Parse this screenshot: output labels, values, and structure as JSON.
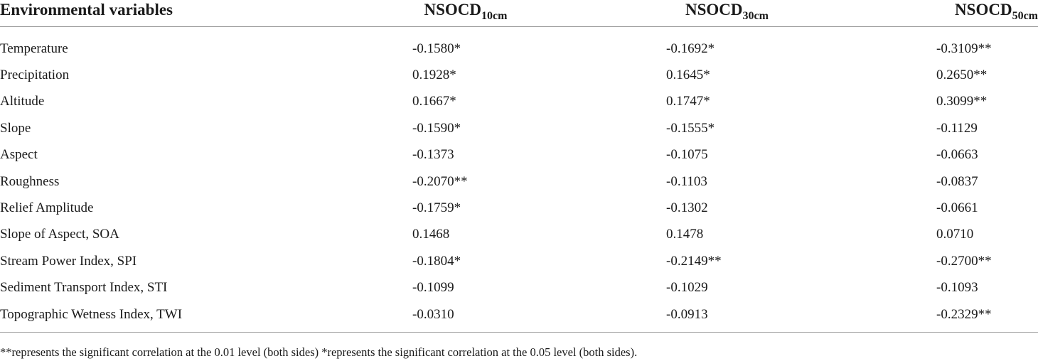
{
  "table": {
    "header": {
      "first": "Environmental variables",
      "columns": [
        {
          "base": "NSOCD",
          "sub": "10cm"
        },
        {
          "base": "NSOCD",
          "sub": "30cm"
        },
        {
          "base": "NSOCD",
          "sub": "50cm"
        }
      ]
    },
    "rows": [
      {
        "name": "Temperature",
        "values": [
          "-0.1580*",
          "-0.1692*",
          "-0.3109**"
        ]
      },
      {
        "name": "Precipitation",
        "values": [
          "0.1928*",
          "0.1645*",
          "0.2650**"
        ]
      },
      {
        "name": "Altitude",
        "values": [
          "0.1667*",
          "0.1747*",
          "0.3099**"
        ]
      },
      {
        "name": "Slope",
        "values": [
          "-0.1590*",
          "-0.1555*",
          "-0.1129"
        ]
      },
      {
        "name": "Aspect",
        "values": [
          "-0.1373",
          "-0.1075",
          "-0.0663"
        ]
      },
      {
        "name": "Roughness",
        "values": [
          "-0.2070**",
          "-0.1103",
          "-0.0837"
        ]
      },
      {
        "name": "Relief Amplitude",
        "values": [
          "-0.1759*",
          "-0.1302",
          "-0.0661"
        ]
      },
      {
        "name": "Slope of Aspect, SOA",
        "values": [
          "0.1468",
          "0.1478",
          "0.0710"
        ]
      },
      {
        "name": "Stream Power Index, SPI",
        "values": [
          "-0.1804*",
          "-0.2149**",
          "-0.2700**"
        ]
      },
      {
        "name": "Sediment Transport Index, STI",
        "values": [
          "-0.1099",
          "-0.1029",
          "-0.1093"
        ]
      },
      {
        "name": "Topographic Wetness Index, TWI",
        "values": [
          "-0.0310",
          "-0.0913",
          "-0.2329**"
        ]
      }
    ]
  },
  "footnote": "**represents the significant correlation at the 0.01 level (both sides) *represents the significant correlation at the 0.05 level (both sides)."
}
